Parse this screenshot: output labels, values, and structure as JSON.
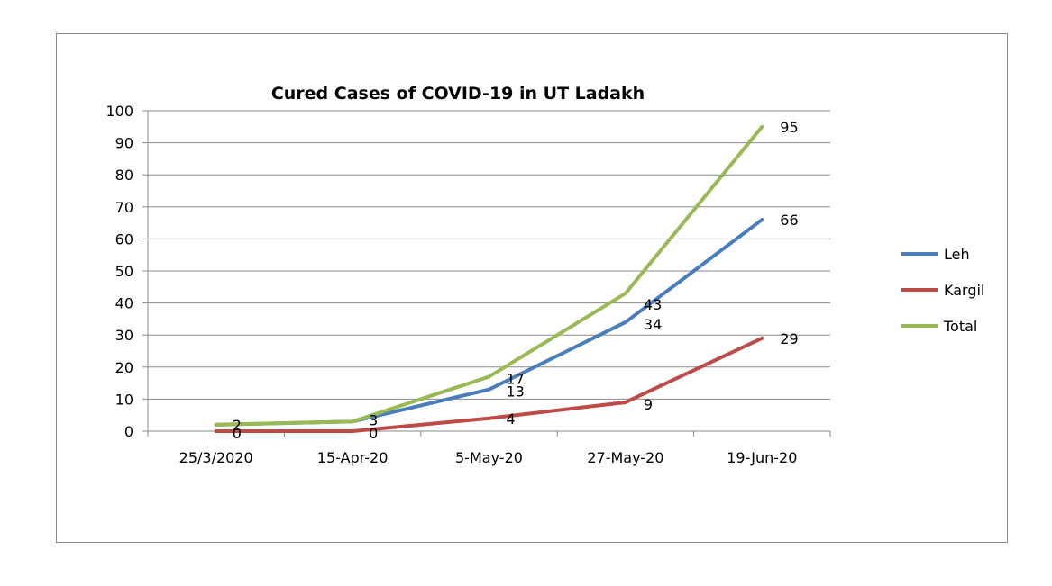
{
  "chart_data": {
    "type": "line",
    "title": "Cured Cases of COVID-19 in UT Ladakh",
    "categories": [
      "25/3/2020",
      "15-Apr-20",
      "5-May-20",
      "27-May-20",
      "19-Jun-20"
    ],
    "ylim": [
      0,
      100
    ],
    "yticks": [
      0,
      10,
      20,
      30,
      40,
      50,
      60,
      70,
      80,
      90,
      100
    ],
    "grid": true,
    "legend_position": "right",
    "series": [
      {
        "name": "Leh",
        "color": "#4a7ebb",
        "values": [
          2,
          3,
          13,
          34,
          66
        ]
      },
      {
        "name": "Kargil",
        "color": "#be4b48",
        "values": [
          0,
          0,
          4,
          9,
          29
        ]
      },
      {
        "name": "Total",
        "color": "#98b954",
        "values": [
          2,
          3,
          17,
          43,
          95
        ]
      }
    ],
    "data_labels": [
      {
        "series": "Total",
        "index": 0,
        "text": "2"
      },
      {
        "series": "Kargil",
        "index": 0,
        "text": "0"
      },
      {
        "series": "Total",
        "index": 1,
        "text": "3"
      },
      {
        "series": "Kargil",
        "index": 1,
        "text": "0"
      },
      {
        "series": "Total",
        "index": 2,
        "text": "17"
      },
      {
        "series": "Leh",
        "index": 2,
        "text": "13"
      },
      {
        "series": "Kargil",
        "index": 2,
        "text": "4"
      },
      {
        "series": "Total",
        "index": 3,
        "text": "43"
      },
      {
        "series": "Leh",
        "index": 3,
        "text": "34"
      },
      {
        "series": "Kargil",
        "index": 3,
        "text": "9"
      },
      {
        "series": "Total",
        "index": 4,
        "text": "95"
      },
      {
        "series": "Leh",
        "index": 4,
        "text": "66"
      },
      {
        "series": "Kargil",
        "index": 4,
        "text": "29"
      }
    ]
  }
}
